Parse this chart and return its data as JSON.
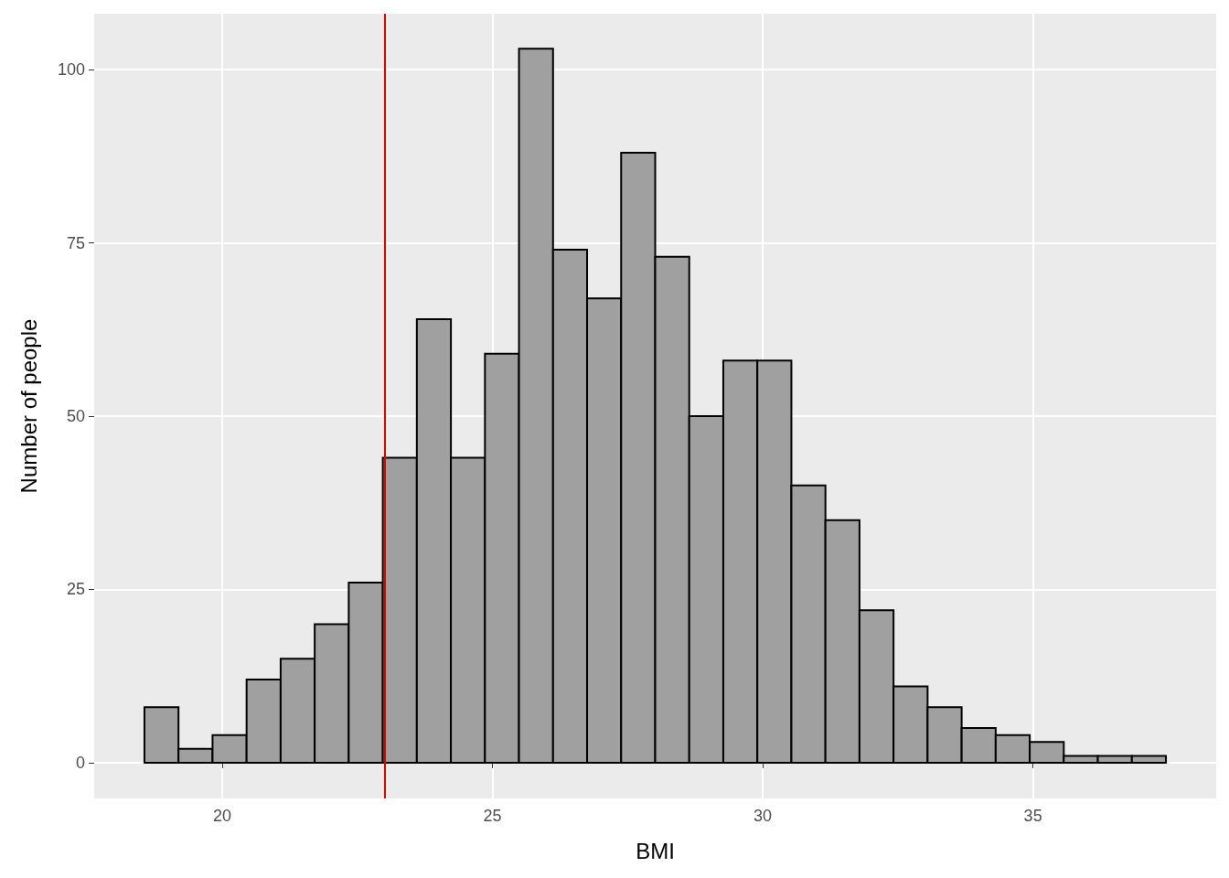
{
  "chart_data": {
    "type": "histogram",
    "xlabel": "BMI",
    "ylabel": "Number of people",
    "bins": [
      18.56,
      19.19,
      19.82,
      20.45,
      21.08,
      21.71,
      22.34,
      22.97,
      23.6,
      24.23,
      24.86,
      25.49,
      26.12,
      26.75,
      27.38,
      28.01,
      28.64,
      29.27,
      29.9,
      30.53,
      31.16,
      31.79,
      32.42,
      33.05,
      33.68,
      34.31,
      34.94,
      35.57,
      36.2,
      36.83,
      37.46
    ],
    "values": [
      8,
      2,
      4,
      12,
      15,
      20,
      26,
      44,
      64,
      44,
      59,
      103,
      74,
      67,
      88,
      73,
      50,
      58,
      58,
      40,
      35,
      22,
      11,
      8,
      5,
      4,
      3,
      1,
      1,
      1
    ],
    "color": "#a0a0a0",
    "xlim": [
      17.63,
      38.39
    ],
    "ylim": [
      -5.15,
      108.05
    ],
    "xticks": [
      20,
      25,
      30,
      35
    ],
    "yticks": [
      0,
      25,
      50,
      75,
      100
    ],
    "ref_lines": [
      {
        "axis": "x",
        "value": 23,
        "color": "#e00000"
      }
    ],
    "grid": true
  }
}
